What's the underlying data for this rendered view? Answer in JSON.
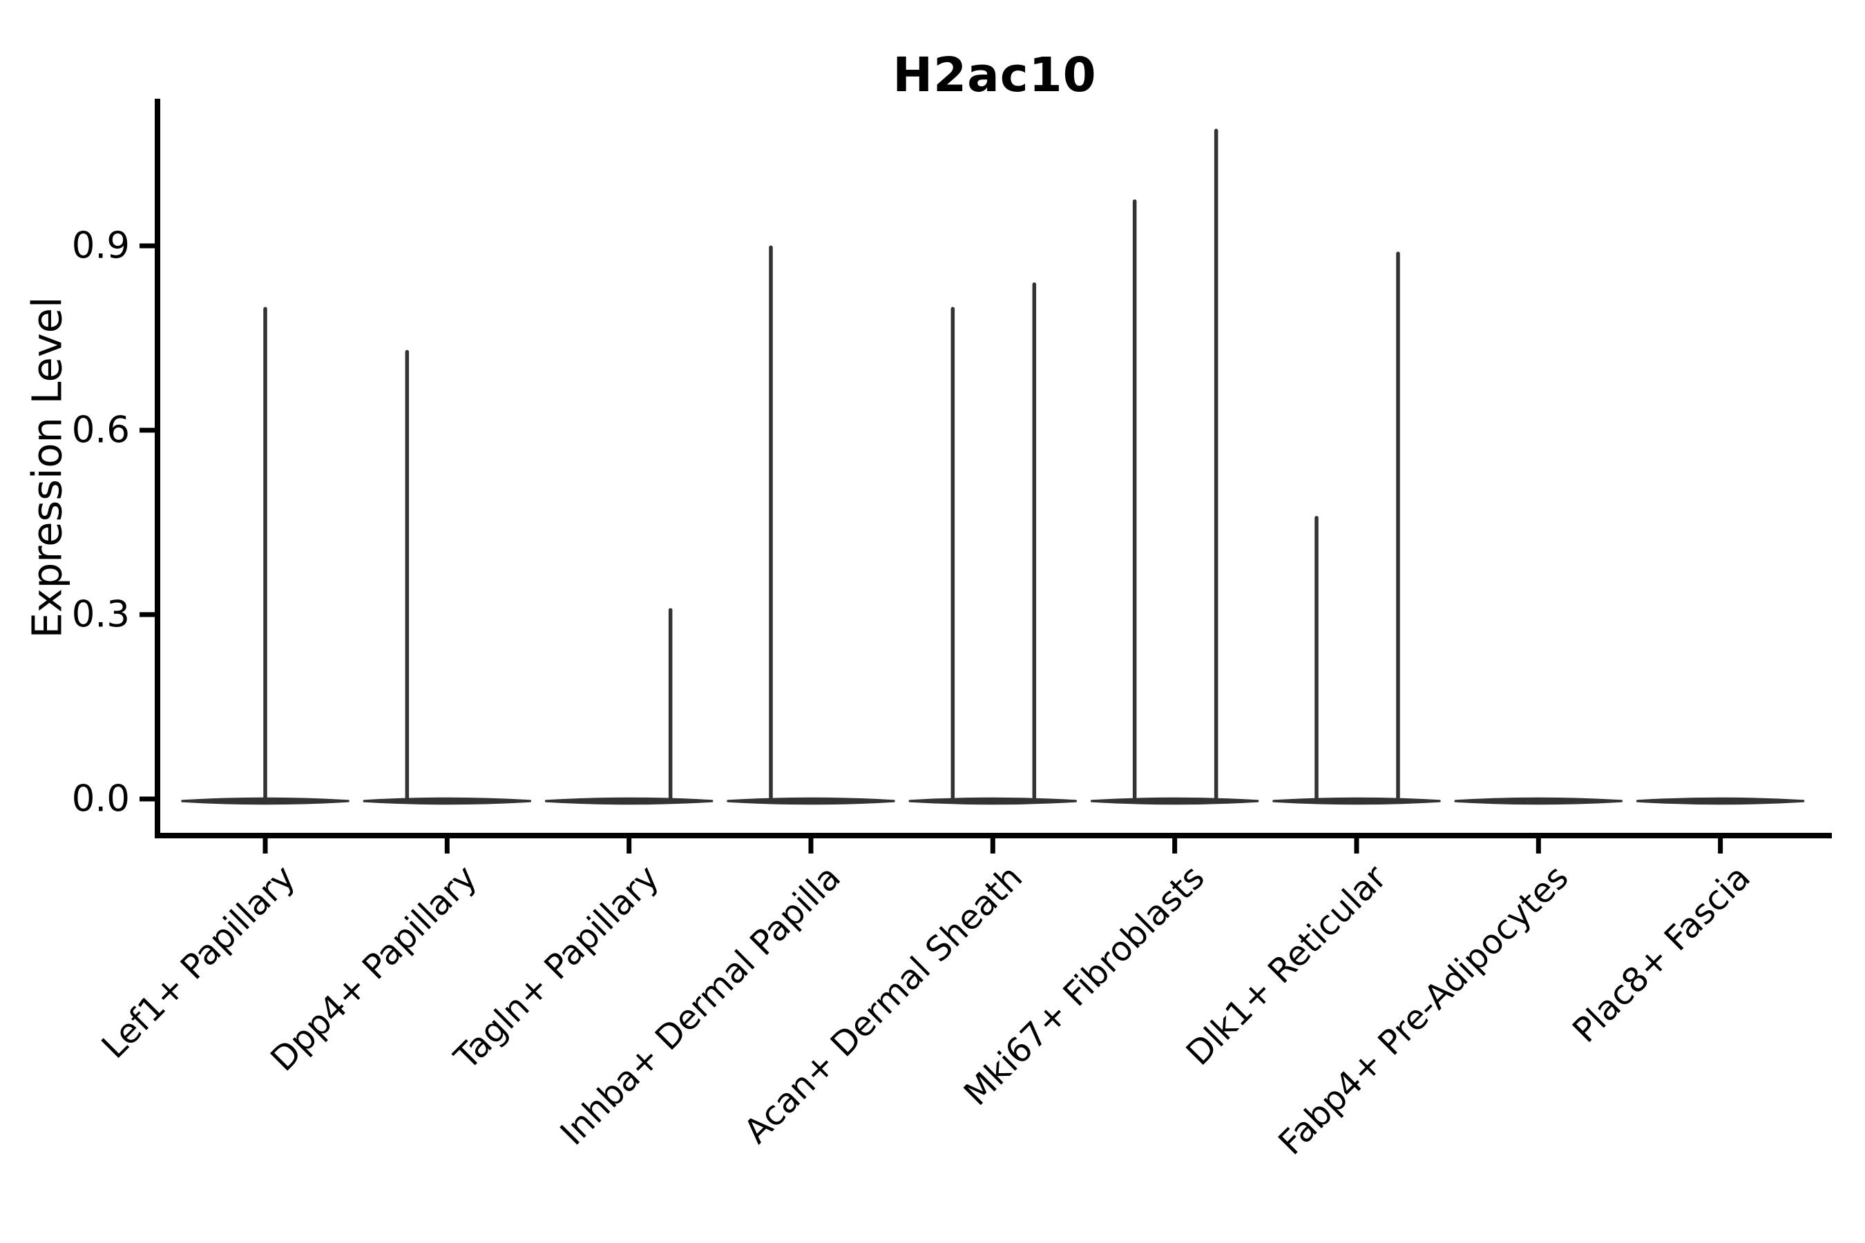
{
  "page": {
    "background_color": "#ffffff",
    "ink_color": "#000000",
    "violin_color": "#333333"
  },
  "title": "H2ac10",
  "y_axis": {
    "label": "Expression Level",
    "tick_labels": [
      "0.0",
      "0.3",
      "0.6",
      "0.9"
    ],
    "tick_values": [
      0.0,
      0.3,
      0.6,
      0.9
    ]
  },
  "x_axis": {
    "label": "",
    "tick_labels": [
      "Lef1+ Papillary",
      "Dpp4+ Papillary",
      "Tagln+ Papillary",
      "Inhba+ Dermal Papilla",
      "Acan+ Dermal Sheath",
      "Mki67+ Fibroblasts",
      "Dlk1+ Reticular",
      "Fabp4+ Pre-Adipocytes",
      "Plac8+ Fascia"
    ]
  },
  "chart_data": {
    "type": "violin",
    "title": "H2ac10",
    "xlabel": "",
    "ylabel": "Expression Level",
    "ylim": [
      -0.06,
      1.14
    ],
    "yticks": [
      0.0,
      0.3,
      0.6,
      0.9
    ],
    "grid": false,
    "legend": null,
    "description": "Single-cell expression violin plot; each category shows a wide flat density bulk at 0 and thin vertical spikes up to the maximum expression of the few expressing cells.",
    "categories": [
      "Lef1+ Papillary",
      "Dpp4+ Papillary",
      "Tagln+ Papillary",
      "Inhba+ Dermal Papilla",
      "Acan+ Dermal Sheath",
      "Mki67+ Fibroblasts",
      "Dlk1+ Reticular",
      "Fabp4+ Pre-Adipocytes",
      "Plac8+ Fascia"
    ],
    "violins": [
      {
        "category": "Lef1+ Papillary",
        "bulk_at_zero": true,
        "spikes": [
          {
            "position": "center",
            "max": 0.8
          }
        ]
      },
      {
        "category": "Dpp4+ Papillary",
        "bulk_at_zero": true,
        "spikes": [
          {
            "position": "left",
            "max": 0.73
          }
        ]
      },
      {
        "category": "Tagln+ Papillary",
        "bulk_at_zero": true,
        "spikes": [
          {
            "position": "right",
            "max": 0.31
          }
        ]
      },
      {
        "category": "Inhba+ Dermal Papilla",
        "bulk_at_zero": true,
        "spikes": [
          {
            "position": "left",
            "max": 0.9
          }
        ]
      },
      {
        "category": "Acan+ Dermal Sheath",
        "bulk_at_zero": true,
        "spikes": [
          {
            "position": "left",
            "max": 0.8
          },
          {
            "position": "right",
            "max": 0.84
          }
        ]
      },
      {
        "category": "Mki67+ Fibroblasts",
        "bulk_at_zero": true,
        "spikes": [
          {
            "position": "left",
            "max": 0.975
          },
          {
            "position": "right",
            "max": 1.09
          }
        ]
      },
      {
        "category": "Dlk1+ Reticular",
        "bulk_at_zero": true,
        "spikes": [
          {
            "position": "left",
            "max": 0.46
          },
          {
            "position": "right",
            "max": 0.89
          }
        ]
      },
      {
        "category": "Fabp4+ Pre-Adipocytes",
        "bulk_at_zero": true,
        "spikes": []
      },
      {
        "category": "Plac8+ Fascia",
        "bulk_at_zero": true,
        "spikes": []
      }
    ]
  }
}
